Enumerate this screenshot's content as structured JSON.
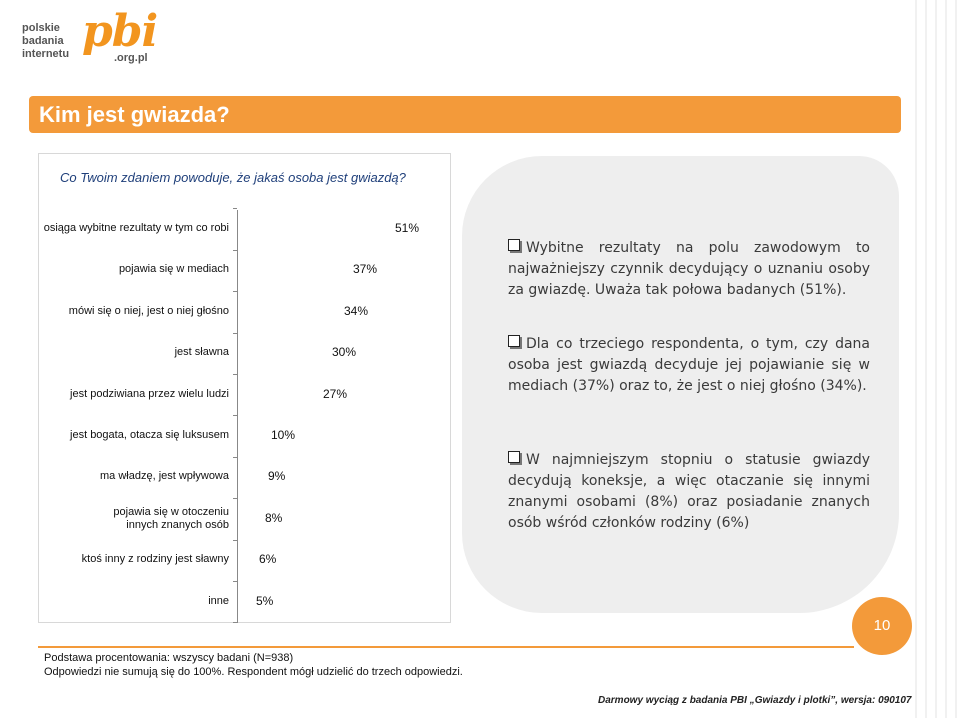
{
  "logo": {
    "line1": "polskie",
    "line2": "badania",
    "line3": "internetu",
    "brand": "pbi",
    "domain": ".org.pl"
  },
  "title": "Kim jest gwiazda?",
  "chart_data": {
    "type": "bar",
    "orientation": "horizontal",
    "title": "Co Twoim zdaniem powoduje, że jakaś osoba jest gwiazdą?",
    "categories": [
      "osiąga wybitne rezultaty w tym co robi",
      "pojawia się w mediach",
      "mówi się o niej, jest o niej głośno",
      "jest sławna",
      "jest podziwiana przez wielu ludzi",
      "jest bogata, otacza się luksusem",
      "ma władzę, jest wpływowa",
      "pojawia się w otoczeniu innych znanych osób",
      "ktoś inny z rodziny jest sławny",
      "inne"
    ],
    "values": [
      51,
      37,
      34,
      30,
      27,
      10,
      9,
      8,
      6,
      5
    ],
    "value_labels": [
      "51%",
      "37%",
      "34%",
      "30%",
      "27%",
      "10%",
      "9%",
      "8%",
      "6%",
      "5%"
    ],
    "unit": "%",
    "xlim": [
      0,
      60
    ],
    "grid": false,
    "legend": "none",
    "colors": {
      "bar": "#ffffff",
      "axis": "#888888"
    }
  },
  "bullets": [
    "Wybitne rezultaty na polu zawodowym to najważniejszy czynnik decydujący o uznaniu osoby za gwiazdę. Uważa tak połowa badanych (51%).",
    "Dla co trzeciego respondenta, o tym, czy dana osoba jest gwiazdą decyduje jej pojawianie się w mediach (37%) oraz to, że jest o niej głośno (34%).",
    "W najmniejszym stopniu o statusie gwiazdy decydują koneksje, a więc otaczanie się innymi znanymi osobami (8%) oraz posiadanie znanych osób wśród członków rodziny (6%)"
  ],
  "page_number": "10",
  "footnotes": {
    "base": "Podstawa procentowania: wszyscy badani (N=938)",
    "note": "Odpowiedzi nie sumują się do 100%. Respondent mógł udzielić do trzech odpowiedzi."
  },
  "source": "Darmowy wyciąg z badania PBI „Gwiazdy i plotki”, wersja: 090107",
  "colors": {
    "accent": "#f39a3a",
    "question": "#1f3f7a",
    "panel": "#eeeeee"
  }
}
